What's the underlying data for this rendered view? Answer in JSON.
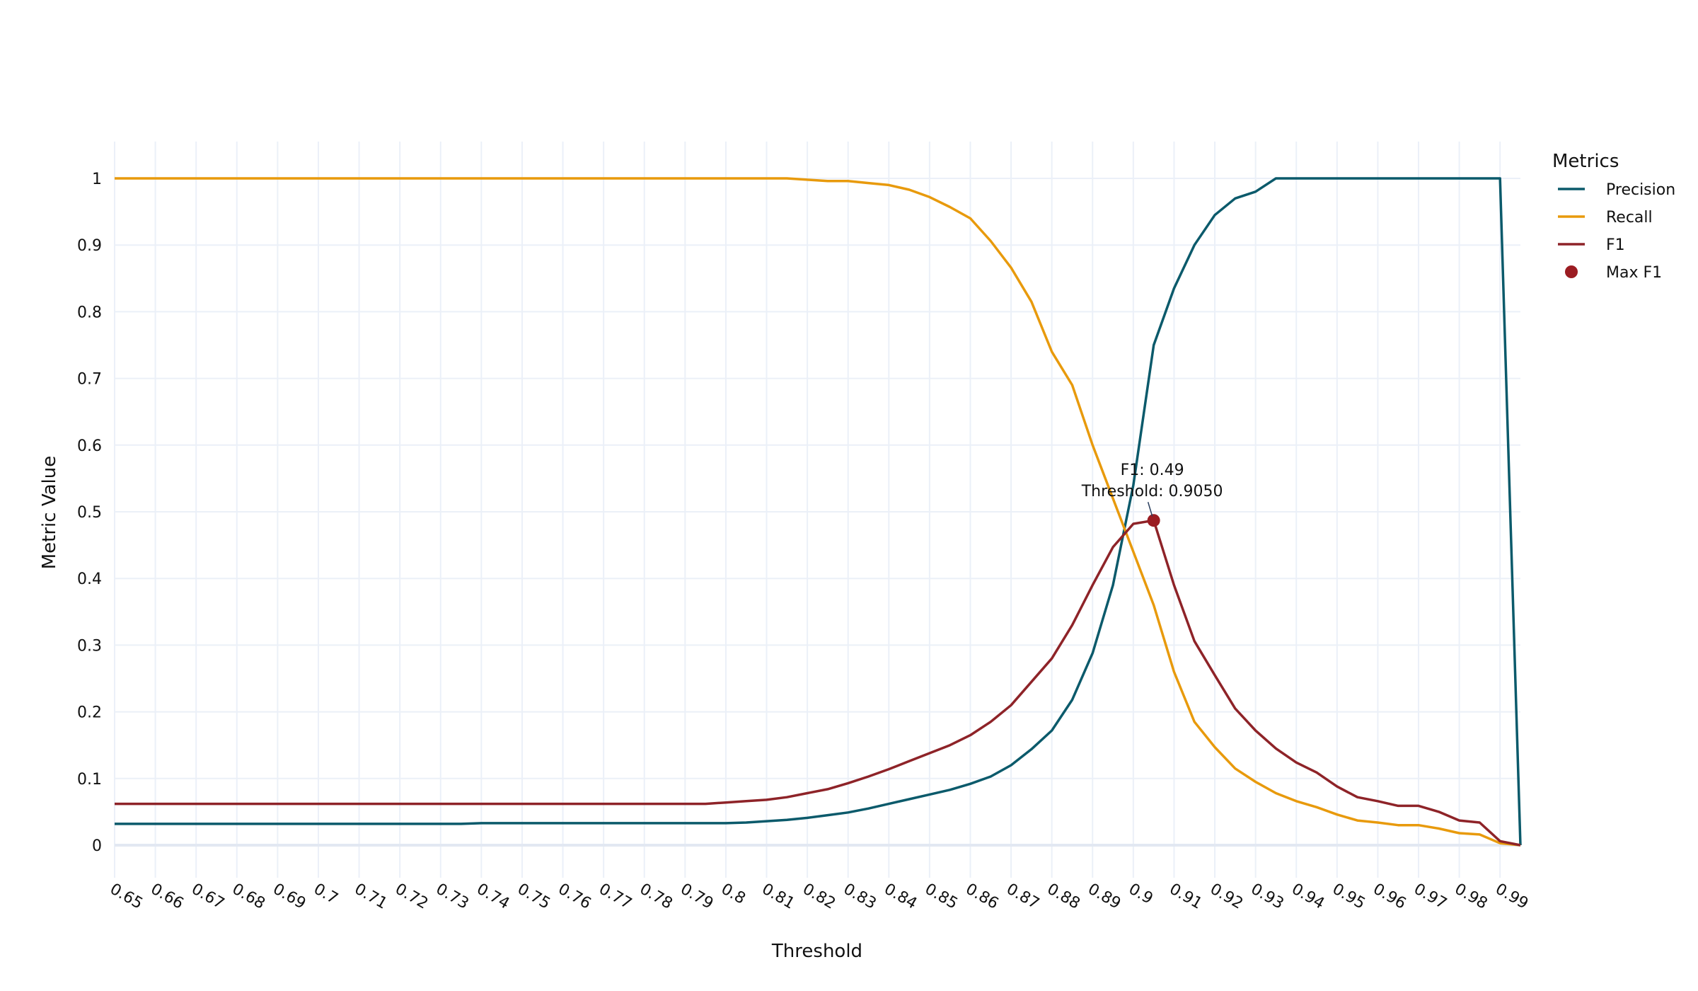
{
  "chart_data": {
    "type": "line",
    "title": "",
    "xlabel": "Threshold",
    "ylabel": "Metric Value",
    "xlim": [
      0.65,
      0.995
    ],
    "ylim": [
      -0.05,
      1.055
    ],
    "grid": true,
    "legend_position": "right",
    "legend_title": "Metrics",
    "x_ticks": [
      "0.65",
      "0.66",
      "0.67",
      "0.68",
      "0.69",
      "0.7",
      "0.71",
      "0.72",
      "0.73",
      "0.74",
      "0.75",
      "0.76",
      "0.77",
      "0.78",
      "0.79",
      "0.8",
      "0.81",
      "0.82",
      "0.83",
      "0.84",
      "0.85",
      "0.86",
      "0.87",
      "0.88",
      "0.89",
      "0.9",
      "0.91",
      "0.92",
      "0.93",
      "0.94",
      "0.95",
      "0.96",
      "0.97",
      "0.98",
      "0.99"
    ],
    "y_ticks": [
      "0",
      "0.1",
      "0.2",
      "0.3",
      "0.4",
      "0.5",
      "0.6",
      "0.7",
      "0.8",
      "0.9",
      "1"
    ],
    "x": [
      0.65,
      0.655,
      0.66,
      0.665,
      0.67,
      0.675,
      0.68,
      0.685,
      0.69,
      0.695,
      0.7,
      0.705,
      0.71,
      0.715,
      0.72,
      0.725,
      0.73,
      0.735,
      0.74,
      0.745,
      0.75,
      0.755,
      0.76,
      0.765,
      0.77,
      0.775,
      0.78,
      0.785,
      0.79,
      0.795,
      0.8,
      0.805,
      0.81,
      0.815,
      0.82,
      0.825,
      0.83,
      0.835,
      0.84,
      0.845,
      0.85,
      0.855,
      0.86,
      0.865,
      0.87,
      0.875,
      0.88,
      0.885,
      0.89,
      0.895,
      0.9,
      0.905,
      0.91,
      0.915,
      0.92,
      0.925,
      0.93,
      0.935,
      0.94,
      0.945,
      0.95,
      0.955,
      0.96,
      0.965,
      0.97,
      0.975,
      0.98,
      0.985,
      0.99,
      0.995
    ],
    "series": [
      {
        "name": "Precision",
        "color": "#0b5a6b",
        "values": [
          0.032,
          0.032,
          0.032,
          0.032,
          0.032,
          0.032,
          0.032,
          0.032,
          0.032,
          0.032,
          0.032,
          0.032,
          0.032,
          0.032,
          0.032,
          0.032,
          0.032,
          0.032,
          0.033,
          0.033,
          0.033,
          0.033,
          0.033,
          0.033,
          0.033,
          0.033,
          0.033,
          0.033,
          0.033,
          0.033,
          0.033,
          0.034,
          0.036,
          0.038,
          0.041,
          0.045,
          0.049,
          0.055,
          0.062,
          0.069,
          0.076,
          0.083,
          0.092,
          0.103,
          0.12,
          0.144,
          0.172,
          0.218,
          0.288,
          0.39,
          0.54,
          0.75,
          0.835,
          0.9,
          0.945,
          0.97,
          0.98,
          1,
          1,
          1,
          1,
          1,
          1,
          1,
          1,
          1,
          1,
          1,
          1,
          0
        ]
      },
      {
        "name": "Recall",
        "color": "#e89a0c",
        "values": [
          1,
          1,
          1,
          1,
          1,
          1,
          1,
          1,
          1,
          1,
          1,
          1,
          1,
          1,
          1,
          1,
          1,
          1,
          1,
          1,
          1,
          1,
          1,
          1,
          1,
          1,
          1,
          1,
          1,
          1,
          1,
          1,
          1,
          1,
          0.998,
          0.996,
          0.996,
          0.993,
          0.99,
          0.983,
          0.972,
          0.957,
          0.94,
          0.906,
          0.866,
          0.815,
          0.74,
          0.69,
          0.6,
          0.52,
          0.44,
          0.36,
          0.26,
          0.185,
          0.147,
          0.115,
          0.095,
          0.078,
          0.066,
          0.057,
          0.046,
          0.037,
          0.034,
          0.03,
          0.03,
          0.025,
          0.018,
          0.016,
          0.003,
          0
        ]
      },
      {
        "name": "F1",
        "color": "#8e2328",
        "values": [
          0.062,
          0.062,
          0.062,
          0.062,
          0.062,
          0.062,
          0.062,
          0.062,
          0.062,
          0.062,
          0.062,
          0.062,
          0.062,
          0.062,
          0.062,
          0.062,
          0.062,
          0.062,
          0.062,
          0.062,
          0.062,
          0.062,
          0.062,
          0.062,
          0.062,
          0.062,
          0.062,
          0.062,
          0.062,
          0.062,
          0.064,
          0.066,
          0.068,
          0.072,
          0.078,
          0.084,
          0.093,
          0.103,
          0.114,
          0.126,
          0.138,
          0.15,
          0.165,
          0.185,
          0.21,
          0.245,
          0.28,
          0.33,
          0.39,
          0.447,
          0.482,
          0.487,
          0.39,
          0.306,
          0.255,
          0.205,
          0.172,
          0.145,
          0.124,
          0.109,
          0.088,
          0.072,
          0.066,
          0.059,
          0.059,
          0.05,
          0.037,
          0.034,
          0.006,
          0
        ]
      }
    ],
    "max_f1": {
      "name": "Max F1",
      "color": "#9b1c22",
      "x": 0.905,
      "y": 0.487,
      "label_line1": "F1: 0.49",
      "label_line2": "Threshold: 0.9050"
    }
  }
}
